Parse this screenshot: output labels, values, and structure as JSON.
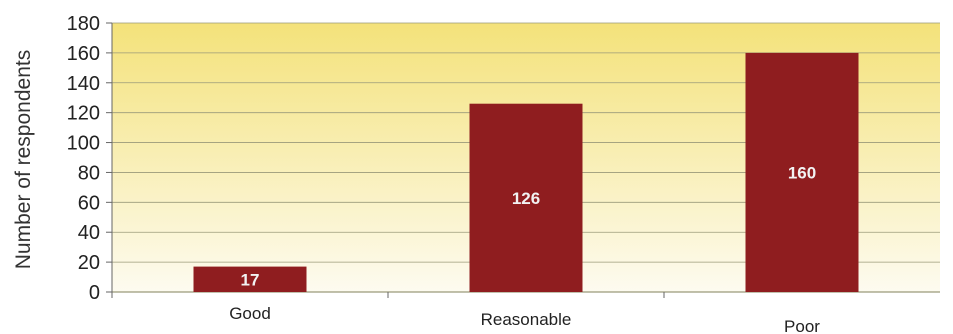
{
  "chart_data": {
    "type": "bar",
    "categories": [
      "Good",
      "Reasonable",
      "Poor"
    ],
    "values": [
      17,
      126,
      160
    ],
    "data_labels": [
      "17",
      "126",
      "160"
    ],
    "title": "",
    "xlabel": "",
    "ylabel": "Number of respondents",
    "ylim": [
      0,
      180
    ],
    "yticks": [
      0,
      20,
      40,
      60,
      80,
      100,
      120,
      140,
      160,
      180
    ],
    "grid": true,
    "legend": "none",
    "colors": {
      "bar": "#8f1d1f",
      "plot_bg_top": "#f4e27a",
      "plot_bg_bottom": "#fdfbf0",
      "grid": "#9a9a7a"
    }
  }
}
